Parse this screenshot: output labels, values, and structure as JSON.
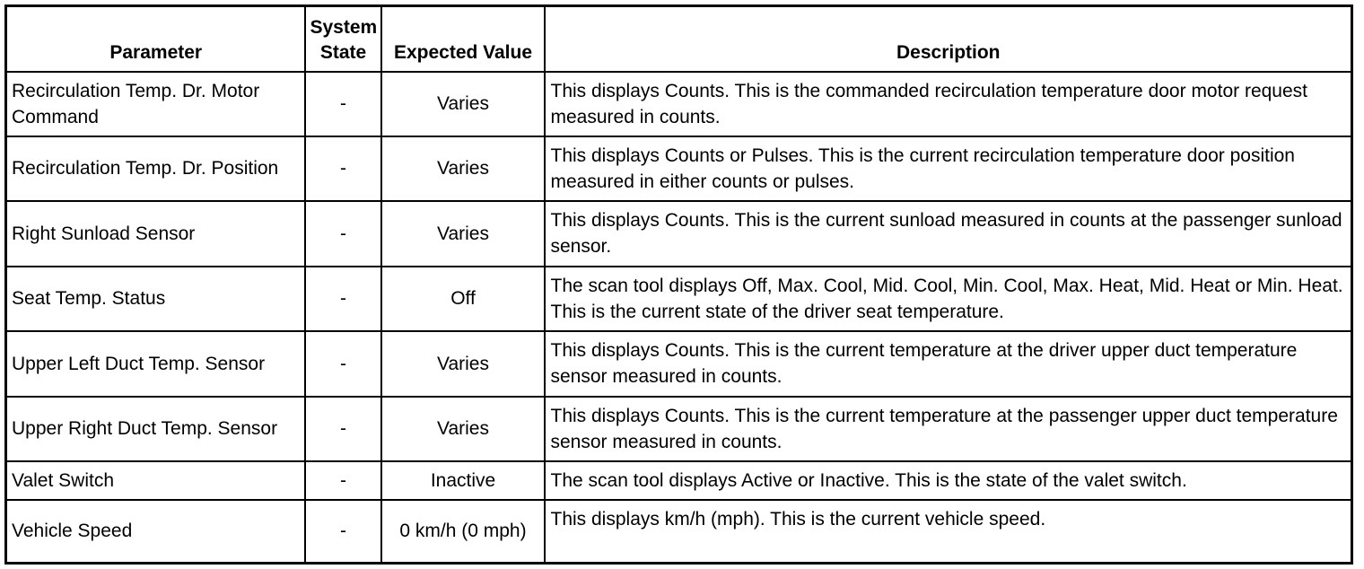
{
  "headers": {
    "parameter": "Parameter",
    "system_state": "System State",
    "expected_value": "Expected Value",
    "description": "Description"
  },
  "rows": [
    {
      "parameter": "Recirculation Temp. Dr. Motor Command",
      "system_state": "-",
      "expected_value": "Varies",
      "description": "This displays Counts. This is the commanded recirculation temperature door motor request measured in counts."
    },
    {
      "parameter": "Recirculation Temp. Dr. Position",
      "system_state": "-",
      "expected_value": "Varies",
      "description": "This displays Counts or Pulses. This is the current recirculation temperature door position measured in either counts or pulses."
    },
    {
      "parameter": "Right Sunload Sensor",
      "system_state": "-",
      "expected_value": "Varies",
      "description": "This displays Counts. This is the current sunload measured in counts at the passenger sunload sensor."
    },
    {
      "parameter": "Seat Temp. Status",
      "system_state": "-",
      "expected_value": "Off",
      "description": "The scan tool displays Off, Max. Cool, Mid. Cool, Min. Cool, Max. Heat, Mid. Heat or Min. Heat. This is the current state of the driver seat temperature."
    },
    {
      "parameter": "Upper Left Duct Temp. Sensor",
      "system_state": "-",
      "expected_value": "Varies",
      "description": "This displays Counts. This is the current temperature at the driver upper duct temperature sensor measured in counts."
    },
    {
      "parameter": "Upper Right Duct Temp. Sensor",
      "system_state": "-",
      "expected_value": "Varies",
      "description": "This displays Counts. This is the current temperature at the passenger upper duct temperature sensor measured in counts."
    },
    {
      "parameter": "Valet Switch",
      "system_state": "-",
      "expected_value": "Inactive",
      "description": "The scan tool displays Active or Inactive. This is the state of the valet switch."
    },
    {
      "parameter": "Vehicle Speed",
      "system_state": "-",
      "expected_value": "0 km/h (0 mph)",
      "description": "This displays km/h (mph). This is the current vehicle speed."
    }
  ]
}
